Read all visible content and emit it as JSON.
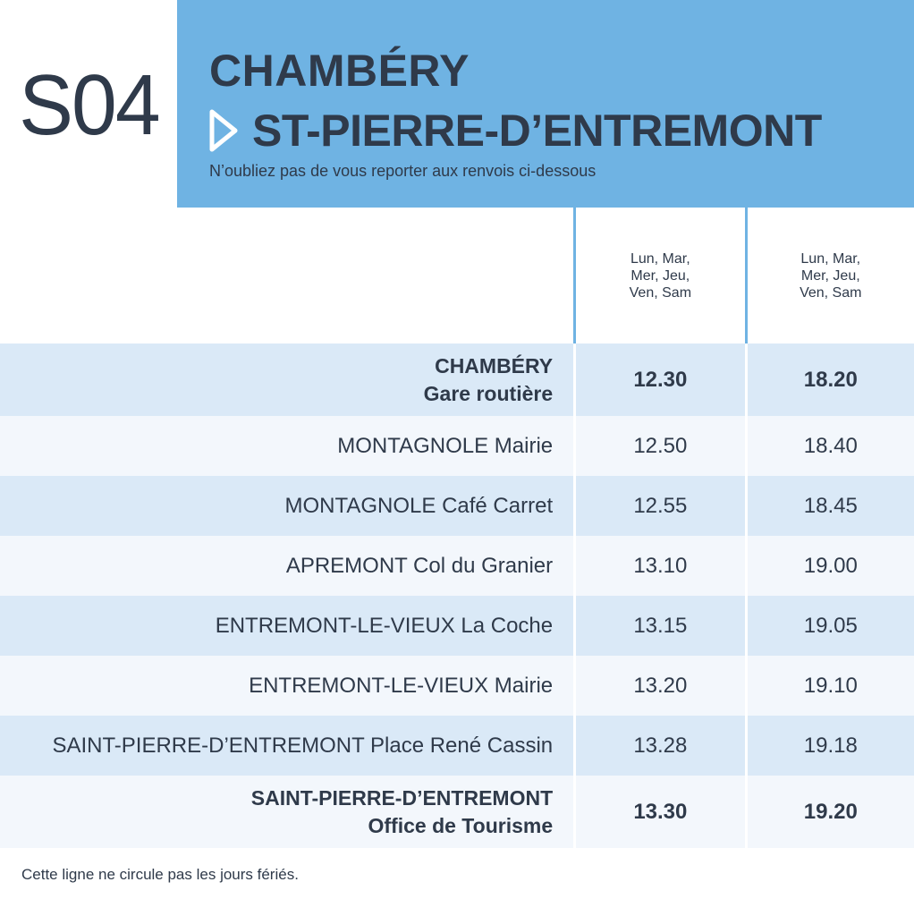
{
  "line": {
    "code": "S04"
  },
  "header": {
    "from": "CHAMBÉRY",
    "to": "ST-PIERRE-D’ENTREMONT",
    "note": "N’oubliez pas de vous reporter aux renvois ci-dessous"
  },
  "days": [
    {
      "line1": "Lun, Mar,",
      "line2": "Mer, Jeu,",
      "line3": "Ven, Sam"
    },
    {
      "line1": "Lun, Mar,",
      "line2": "Mer, Jeu,",
      "line3": "Ven, Sam"
    }
  ],
  "stops": [
    {
      "name": "CHAMBÉRY",
      "detail": "Gare routière",
      "times": [
        "12.30",
        "18.20"
      ]
    },
    {
      "name": "MONTAGNOLE Mairie",
      "times": [
        "12.50",
        "18.40"
      ]
    },
    {
      "name": "MONTAGNOLE Café Carret",
      "times": [
        "12.55",
        "18.45"
      ]
    },
    {
      "name": "APREMONT Col du Granier",
      "times": [
        "13.10",
        "19.00"
      ]
    },
    {
      "name": "ENTREMONT-LE-VIEUX La Coche",
      "times": [
        "13.15",
        "19.05"
      ]
    },
    {
      "name": "ENTREMONT-LE-VIEUX Mairie",
      "times": [
        "13.20",
        "19.10"
      ]
    },
    {
      "name": "SAINT-PIERRE-D’ENTREMONT Place René Cassin",
      "times": [
        "13.28",
        "19.18"
      ]
    },
    {
      "name": "SAINT-PIERRE-D’ENTREMONT",
      "detail": "Office de Tourisme",
      "times": [
        "13.30",
        "19.20"
      ]
    }
  ],
  "footer": {
    "note": "Cette ligne ne circule pas les jours fériés."
  },
  "colors": {
    "accent": "#6fb3e3",
    "text": "#2f3a4a",
    "row_blue": "#dae9f7",
    "row_light": "#f3f7fc"
  },
  "icons": {
    "direction": "play-arrow-outline-icon"
  }
}
